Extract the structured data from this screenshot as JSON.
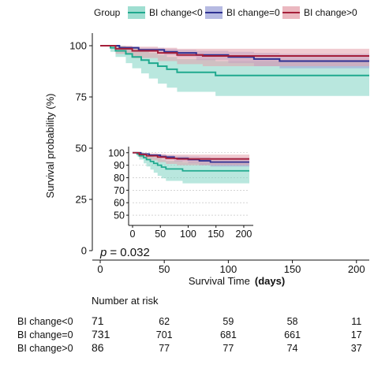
{
  "chart_data": {
    "type": "line",
    "subtype": "kaplan-meier",
    "legend": {
      "title": "Group",
      "position": "top",
      "entries": [
        "BI change<0",
        "BI change=0",
        "BI change>0"
      ]
    },
    "xlabel": "Survival Time",
    "xlabel_unit": "(days)",
    "ylabel": "Survival probability (%)",
    "xlim": [
      0,
      210
    ],
    "ylim": [
      0,
      105
    ],
    "x_ticks": [
      "0",
      "50",
      "100",
      "150",
      "200"
    ],
    "y_ticks": [
      "0",
      "25",
      "50",
      "75",
      "100"
    ],
    "grid": false,
    "p_label": "p",
    "p_value": "= 0.032",
    "series": [
      {
        "name": "BI change<0",
        "color": "#1fa98e",
        "band_color": "#7fd3c2",
        "steps": [
          [
            0,
            100
          ],
          [
            8,
            99
          ],
          [
            12,
            97.5
          ],
          [
            20,
            96
          ],
          [
            25,
            94.5
          ],
          [
            32,
            93
          ],
          [
            38,
            91.5
          ],
          [
            45,
            90
          ],
          [
            52,
            88.5
          ],
          [
            60,
            87
          ],
          [
            80,
            87
          ],
          [
            90,
            85.5
          ],
          [
            210,
            85.5
          ]
        ],
        "lower": [
          [
            0,
            100
          ],
          [
            8,
            97
          ],
          [
            12,
            94.5
          ],
          [
            20,
            91.5
          ],
          [
            25,
            89
          ],
          [
            32,
            86.5
          ],
          [
            38,
            84
          ],
          [
            45,
            81.5
          ],
          [
            52,
            79.5
          ],
          [
            60,
            77.5
          ],
          [
            80,
            77.5
          ],
          [
            90,
            75.5
          ],
          [
            210,
            75.5
          ]
        ],
        "upper": [
          [
            0,
            100
          ],
          [
            8,
            100
          ],
          [
            12,
            100
          ],
          [
            20,
            99.5
          ],
          [
            25,
            98.5
          ],
          [
            32,
            97.5
          ],
          [
            38,
            96.5
          ],
          [
            45,
            95.5
          ],
          [
            52,
            94.5
          ],
          [
            60,
            93.5
          ],
          [
            80,
            93.5
          ],
          [
            90,
            92.5
          ],
          [
            210,
            92.5
          ]
        ]
      },
      {
        "name": "BI change=0",
        "color": "#2e3192",
        "band_color": "#9ea3d8",
        "steps": [
          [
            0,
            100
          ],
          [
            15,
            99
          ],
          [
            30,
            98
          ],
          [
            50,
            97
          ],
          [
            60,
            96.5
          ],
          [
            75,
            95.5
          ],
          [
            100,
            94.5
          ],
          [
            120,
            93.5
          ],
          [
            140,
            92.5
          ],
          [
            210,
            92.5
          ]
        ],
        "lower": [
          [
            0,
            100
          ],
          [
            15,
            98.5
          ],
          [
            30,
            97
          ],
          [
            50,
            95.5
          ],
          [
            60,
            94.5
          ],
          [
            75,
            93
          ],
          [
            100,
            91.5
          ],
          [
            120,
            90
          ],
          [
            140,
            89
          ],
          [
            210,
            89
          ]
        ],
        "upper": [
          [
            0,
            100
          ],
          [
            15,
            99.5
          ],
          [
            30,
            99
          ],
          [
            50,
            98.5
          ],
          [
            60,
            98
          ],
          [
            75,
            97.5
          ],
          [
            100,
            97
          ],
          [
            120,
            96.5
          ],
          [
            140,
            96
          ],
          [
            210,
            96
          ]
        ]
      },
      {
        "name": "BI change>0",
        "color": "#a51f3a",
        "band_color": "#e4a0ab",
        "steps": [
          [
            0,
            100
          ],
          [
            12,
            98.5
          ],
          [
            25,
            97.5
          ],
          [
            45,
            96.5
          ],
          [
            60,
            95.5
          ],
          [
            80,
            95
          ],
          [
            210,
            95
          ]
        ],
        "lower": [
          [
            0,
            100
          ],
          [
            12,
            96
          ],
          [
            25,
            94
          ],
          [
            45,
            92.5
          ],
          [
            60,
            91
          ],
          [
            80,
            90
          ],
          [
            210,
            90
          ]
        ],
        "upper": [
          [
            0,
            100
          ],
          [
            12,
            100
          ],
          [
            25,
            99.5
          ],
          [
            45,
            99
          ],
          [
            60,
            98.5
          ],
          [
            80,
            98.5
          ],
          [
            210,
            98.5
          ]
        ]
      }
    ],
    "inset": {
      "xlim": [
        0,
        210
      ],
      "ylim": [
        45,
        103
      ],
      "x_ticks": [
        "0",
        "50",
        "100",
        "150",
        "200"
      ],
      "y_ticks": [
        "50",
        "60",
        "70",
        "80",
        "90",
        "100"
      ],
      "grid": true
    },
    "risk_table": {
      "title": "Number at risk",
      "time_points": [
        0,
        50,
        100,
        150,
        200
      ],
      "rows": [
        {
          "name": "BI change<0",
          "counts": [
            "71",
            "62",
            "59",
            "58",
            "11"
          ]
        },
        {
          "name": "BI change=0",
          "counts": [
            "731",
            "701",
            "681",
            "661",
            "17"
          ]
        },
        {
          "name": "BI change>0",
          "counts": [
            "86",
            "77",
            "77",
            "74",
            "37"
          ]
        }
      ]
    }
  }
}
